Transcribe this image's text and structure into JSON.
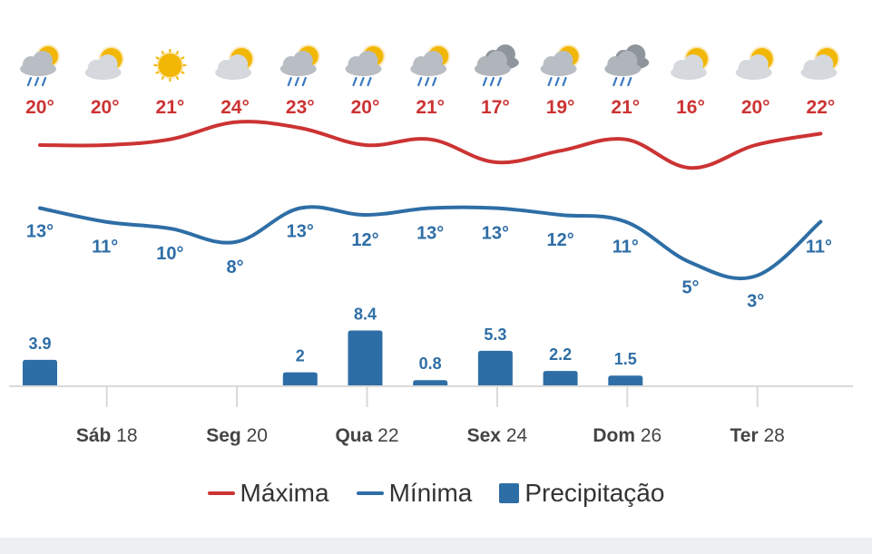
{
  "colors": {
    "max": "#cc3333",
    "min": "#2e6ea6",
    "precip": "#2e6ea6",
    "axis_text": "#444444",
    "grid": "#d9d9d9"
  },
  "chart_data": {
    "type": "line",
    "days": 13,
    "icons": [
      "sun-cloud-rain-icon",
      "sun-cloud-icon",
      "sun-icon",
      "sun-cloud-icon",
      "sun-cloud-rain-icon",
      "sun-cloud-rain-icon",
      "sun-cloud-rain-icon",
      "cloud-rain-icon",
      "sun-cloud-rain-icon",
      "cloud-rain-icon",
      "sun-cloud-icon",
      "sun-cloud-icon",
      "sun-cloud-icon"
    ],
    "series": [
      {
        "name": "Máxima",
        "values": [
          20,
          20,
          21,
          24,
          23,
          20,
          21,
          17,
          19,
          21,
          16,
          20,
          22
        ],
        "labels": [
          "20°",
          "20°",
          "21°",
          "24°",
          "23°",
          "20°",
          "21°",
          "17°",
          "19°",
          "21°",
          "16°",
          "20°",
          "22°"
        ]
      },
      {
        "name": "Mínima",
        "values": [
          13,
          11,
          10,
          8,
          13,
          12,
          13,
          13,
          12,
          11,
          5,
          3,
          11
        ],
        "labels": [
          "13°",
          "11°",
          "10°",
          "8°",
          "13°",
          "12°",
          "13°",
          "13°",
          "12°",
          "11°",
          "5°",
          "3°",
          "11°"
        ]
      }
    ],
    "precipitation": {
      "name": "Precipitação",
      "values": [
        3.9,
        0,
        0,
        0,
        2,
        8.4,
        0.8,
        5.3,
        2.2,
        1.5,
        0,
        0,
        0
      ],
      "labels": [
        "3.9",
        "",
        "",
        "",
        "2",
        "8.4",
        "0.8",
        "5.3",
        "2.2",
        "1.5",
        "",
        "",
        ""
      ]
    },
    "x_ticks": [
      {
        "bold": "Sáb",
        "rest": " 18",
        "day_index": 1
      },
      {
        "bold": "Seg",
        "rest": " 20",
        "day_index": 3
      },
      {
        "bold": "Qua",
        "rest": " 22",
        "day_index": 5
      },
      {
        "bold": "Sex",
        "rest": " 24",
        "day_index": 7
      },
      {
        "bold": "Dom",
        "rest": " 26",
        "day_index": 9
      },
      {
        "bold": "Ter",
        "rest": " 28",
        "day_index": 11
      }
    ],
    "legend": [
      {
        "label": "Máxima",
        "type": "line",
        "series": "max"
      },
      {
        "label": "Mínima",
        "type": "line",
        "series": "min"
      },
      {
        "label": "Precipitação",
        "type": "bar",
        "series": "precip"
      }
    ],
    "grid": false,
    "legend_placement": "bottom-center"
  }
}
